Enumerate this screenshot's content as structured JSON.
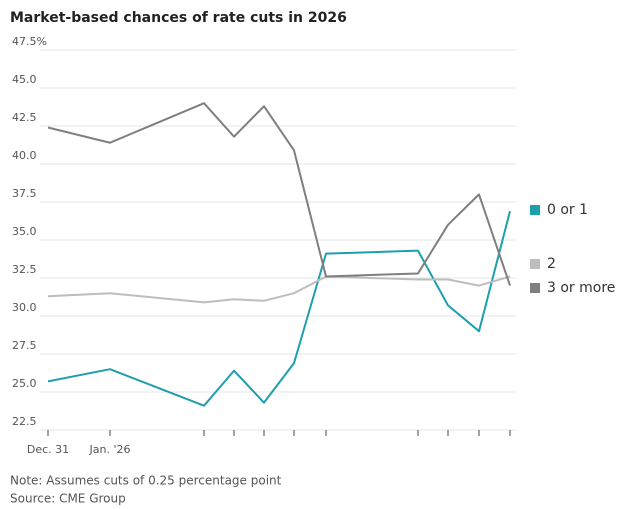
{
  "chart_data": {
    "type": "line",
    "title": "Market-based chances of rate cuts in 2026",
    "note": "Note: Assumes cuts of 0.25 percentage point",
    "source": "Source: CME Group",
    "categories": [
      "Dec. 31",
      "Jan. '26",
      null,
      null,
      null,
      null,
      null,
      null,
      null,
      null,
      null
    ],
    "series": [
      {
        "name": "0 or 1",
        "color": "#1e9fae",
        "values": [
          25.7,
          26.5,
          24.1,
          26.4,
          24.3,
          26.9,
          34.1,
          34.3,
          30.7,
          29.0,
          36.9
        ]
      },
      {
        "name": "2",
        "color": "#bdbdbd",
        "values": [
          31.3,
          31.5,
          30.9,
          31.1,
          31.0,
          31.5,
          32.6,
          32.4,
          32.4,
          32.0,
          32.6
        ]
      },
      {
        "name": "3 or more",
        "color": "#7f7f7f",
        "values": [
          42.4,
          41.4,
          44.0,
          41.8,
          43.8,
          40.9,
          32.6,
          32.8,
          36.0,
          38.0,
          32.0
        ]
      }
    ],
    "ylim": [
      22.5,
      47.5
    ],
    "yticks": [
      22.5,
      {
        "value": 25,
        "label": "25.0"
      },
      27.5,
      {
        "value": 30,
        "label": "30.0"
      },
      32.5,
      {
        "value": 35,
        "label": "35.0"
      },
      37.5,
      {
        "value": 40,
        "label": "40.0"
      },
      42.5,
      {
        "value": 45,
        "label": "45.0"
      },
      {
        "value": 47.5,
        "label": "47.5%"
      }
    ],
    "grid": true,
    "legend": "right"
  }
}
